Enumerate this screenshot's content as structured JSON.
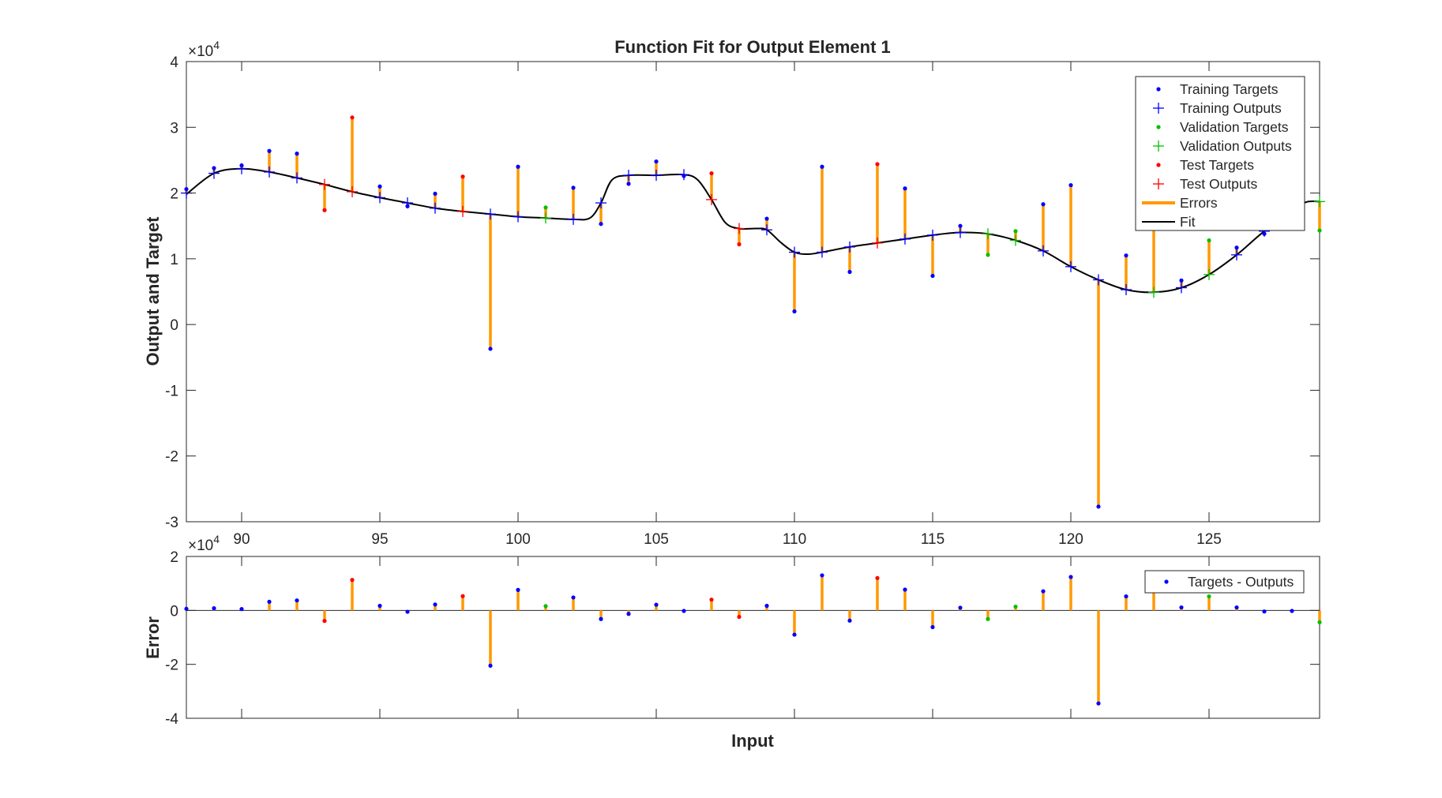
{
  "chart_data": [
    {
      "type": "scatter",
      "title": "Function Fit for Output Element 1",
      "ylabel": "Output and Target",
      "xlabel": "",
      "xlim": [
        88,
        129
      ],
      "ylim": [
        -3,
        4
      ],
      "x_ticks": [
        90,
        95,
        100,
        105,
        110,
        115,
        120,
        125
      ],
      "y_ticks": [
        -3,
        -2,
        -1,
        0,
        1,
        2,
        3,
        4
      ],
      "y_exponent_label": "×10",
      "y_exponent": "4",
      "legend_position": "top-right",
      "legend": [
        "Training Targets",
        "Training Outputs",
        "Validation Targets",
        "Validation Outputs",
        "Test Targets",
        "Test Outputs",
        "Errors",
        "Fit"
      ],
      "colors": {
        "training": "#0000ff",
        "validation": "#00c000",
        "test": "#ff0000",
        "errors": "#ff9900",
        "fit": "#000000"
      },
      "points": [
        {
          "x": 88,
          "target": 2.06,
          "output": 2.0,
          "set": "training"
        },
        {
          "x": 89,
          "target": 2.38,
          "output": 2.3,
          "set": "training"
        },
        {
          "x": 90,
          "target": 2.42,
          "output": 2.37,
          "set": "training"
        },
        {
          "x": 91,
          "target": 2.64,
          "output": 2.32,
          "set": "training"
        },
        {
          "x": 92,
          "target": 2.6,
          "output": 2.23,
          "set": "training"
        },
        {
          "x": 93,
          "target": 1.74,
          "output": 2.13,
          "set": "test"
        },
        {
          "x": 94,
          "target": 3.15,
          "output": 2.02,
          "set": "test"
        },
        {
          "x": 95,
          "target": 2.1,
          "output": 1.93,
          "set": "training"
        },
        {
          "x": 96,
          "target": 1.8,
          "output": 1.85,
          "set": "training"
        },
        {
          "x": 97,
          "target": 1.99,
          "output": 1.77,
          "set": "training"
        },
        {
          "x": 98,
          "target": 2.25,
          "output": 1.72,
          "set": "test"
        },
        {
          "x": 99,
          "target": -0.37,
          "output": 1.68,
          "set": "training"
        },
        {
          "x": 100,
          "target": 2.4,
          "output": 1.64,
          "set": "training"
        },
        {
          "x": 101,
          "target": 1.78,
          "output": 1.62,
          "set": "validation"
        },
        {
          "x": 102,
          "target": 2.08,
          "output": 1.6,
          "set": "training"
        },
        {
          "x": 103,
          "target": 1.53,
          "output": 1.85,
          "set": "training"
        },
        {
          "x": 104,
          "target": 2.14,
          "output": 2.27,
          "set": "training"
        },
        {
          "x": 105,
          "target": 2.48,
          "output": 2.27,
          "set": "training"
        },
        {
          "x": 106,
          "target": 2.26,
          "output": 2.28,
          "set": "training"
        },
        {
          "x": 107,
          "target": 2.3,
          "output": 1.9,
          "set": "test"
        },
        {
          "x": 108,
          "target": 1.22,
          "output": 1.46,
          "set": "test"
        },
        {
          "x": 109,
          "target": 1.61,
          "output": 1.44,
          "set": "training"
        },
        {
          "x": 110,
          "target": 0.2,
          "output": 1.1,
          "set": "training"
        },
        {
          "x": 111,
          "target": 2.4,
          "output": 1.1,
          "set": "training"
        },
        {
          "x": 112,
          "target": 0.8,
          "output": 1.18,
          "set": "training"
        },
        {
          "x": 113,
          "target": 2.44,
          "output": 1.24,
          "set": "test"
        },
        {
          "x": 114,
          "target": 2.07,
          "output": 1.3,
          "set": "training"
        },
        {
          "x": 115,
          "target": 0.74,
          "output": 1.36,
          "set": "training"
        },
        {
          "x": 116,
          "target": 1.5,
          "output": 1.4,
          "set": "training"
        },
        {
          "x": 117,
          "target": 1.06,
          "output": 1.38,
          "set": "validation"
        },
        {
          "x": 118,
          "target": 1.42,
          "output": 1.28,
          "set": "validation"
        },
        {
          "x": 119,
          "target": 1.83,
          "output": 1.12,
          "set": "training"
        },
        {
          "x": 120,
          "target": 2.12,
          "output": 0.88,
          "set": "training"
        },
        {
          "x": 121,
          "target": -2.77,
          "output": 0.68,
          "set": "training"
        },
        {
          "x": 122,
          "target": 1.05,
          "output": 0.53,
          "set": "training"
        },
        {
          "x": 123,
          "target": 1.6,
          "output": 0.49,
          "set": "validation"
        },
        {
          "x": 124,
          "target": 0.67,
          "output": 0.56,
          "set": "training"
        },
        {
          "x": 125,
          "target": 1.28,
          "output": 0.76,
          "set": "validation"
        },
        {
          "x": 126,
          "target": 1.17,
          "output": 1.06,
          "set": "training"
        },
        {
          "x": 127,
          "target": 1.38,
          "output": 1.42,
          "set": "training"
        },
        {
          "x": 128,
          "target": 1.68,
          "output": 1.7,
          "set": "training"
        },
        {
          "x": 129,
          "target": 1.43,
          "output": 1.87,
          "set": "validation"
        }
      ],
      "fit_curve": {
        "x": [
          88,
          89,
          90,
          91,
          92,
          93,
          94,
          95,
          96,
          97,
          98,
          99,
          100,
          101,
          102,
          102.6,
          103,
          103.4,
          104,
          105,
          106,
          106.5,
          107,
          107.5,
          108,
          108.6,
          109,
          109.5,
          110,
          110.5,
          111,
          112,
          113,
          114,
          115,
          116,
          117,
          118,
          119,
          120,
          121,
          122,
          123,
          124,
          125,
          126,
          127,
          128,
          128.5,
          129
        ],
        "y": [
          1.98,
          2.3,
          2.37,
          2.32,
          2.23,
          2.13,
          2.02,
          1.93,
          1.85,
          1.77,
          1.72,
          1.68,
          1.64,
          1.62,
          1.6,
          1.62,
          1.85,
          2.2,
          2.27,
          2.27,
          2.28,
          2.2,
          1.9,
          1.55,
          1.46,
          1.46,
          1.44,
          1.25,
          1.1,
          1.07,
          1.1,
          1.18,
          1.24,
          1.3,
          1.36,
          1.4,
          1.38,
          1.28,
          1.12,
          0.88,
          0.68,
          0.53,
          0.49,
          0.56,
          0.76,
          1.06,
          1.42,
          1.7,
          1.86,
          1.87
        ]
      }
    },
    {
      "type": "scatter",
      "title": "",
      "xlabel": "Input",
      "ylabel": "Error",
      "xlim": [
        88,
        129
      ],
      "ylim": [
        -4,
        2
      ],
      "y_ticks": [
        -4,
        -2,
        0,
        2
      ],
      "y_exponent_label": "×10",
      "y_exponent": "4",
      "legend_position": "top-right",
      "legend": [
        "Targets - Outputs"
      ],
      "colors": {
        "marker": "#0000ff",
        "stem": "#ff9900"
      }
    }
  ]
}
